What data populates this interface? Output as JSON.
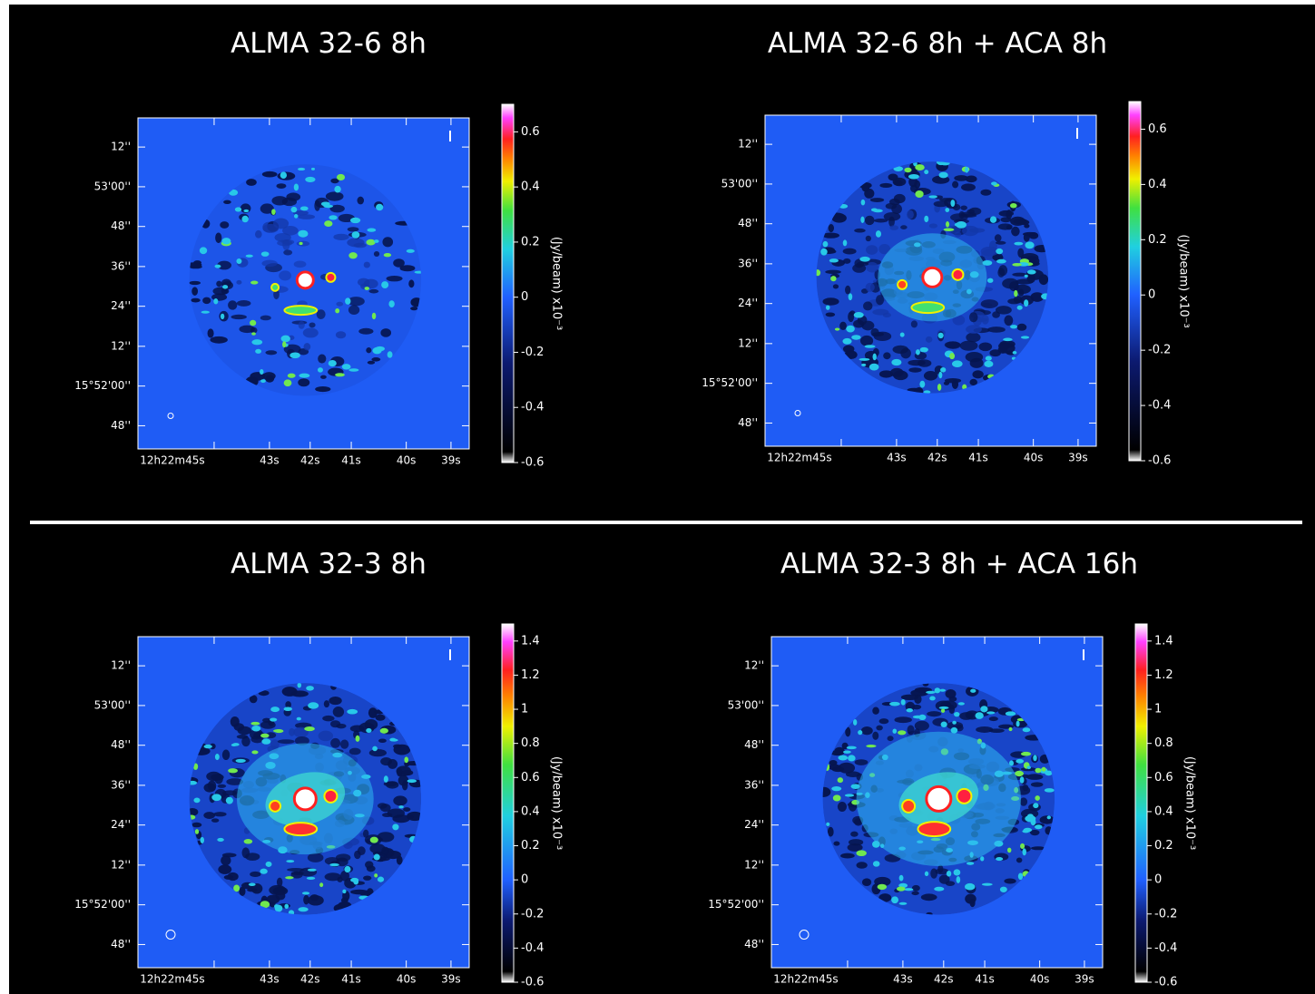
{
  "panels": [
    {
      "title": "ALMA 32-6 8h",
      "y_labels": [
        "12''",
        "53'00''",
        "48''",
        "36''",
        "24''",
        "12''",
        "15°52'00''",
        "48''"
      ],
      "x_labels": [
        "12h22m45s",
        "43s",
        "42s",
        "41s",
        "40s",
        "39s"
      ],
      "colorbar": {
        "label": "(Jy/beam)  x10⁻³",
        "lim": [
          -0.6,
          0.7
        ],
        "ticks": [
          -0.6,
          -0.4,
          -0.2,
          0,
          0.2,
          0.4,
          0.6
        ]
      }
    },
    {
      "title": "ALMA 32-6 8h + ACA 8h",
      "y_labels": [
        "12''",
        "53'00''",
        "48''",
        "36''",
        "24''",
        "12''",
        "15°52'00''",
        "48''"
      ],
      "x_labels": [
        "12h22m45s",
        "43s",
        "42s",
        "41s",
        "40s",
        "39s"
      ],
      "colorbar": {
        "label": "(Jy/beam)  x10⁻³",
        "lim": [
          -0.6,
          0.7
        ],
        "ticks": [
          -0.6,
          -0.4,
          -0.2,
          0,
          0.2,
          0.4,
          0.6
        ]
      }
    },
    {
      "title": "ALMA 32-3 8h",
      "y_labels": [
        "12''",
        "53'00''",
        "48''",
        "36''",
        "24''",
        "12''",
        "15°52'00''",
        "48''"
      ],
      "x_labels": [
        "12h22m45s",
        "43s",
        "42s",
        "41s",
        "40s",
        "39s"
      ],
      "colorbar": {
        "label": "(Jy/beam)  x10⁻³",
        "lim": [
          -0.6,
          1.5
        ],
        "ticks": [
          -0.6,
          -0.4,
          -0.2,
          0,
          0.2,
          0.4,
          0.6,
          0.8,
          1,
          1.2,
          1.4
        ]
      }
    },
    {
      "title": "ALMA 32-3 8h + ACA 16h",
      "y_labels": [
        "12''",
        "53'00''",
        "48''",
        "36''",
        "24''",
        "12''",
        "15°52'00''",
        "48''"
      ],
      "x_labels": [
        "12h22m45s",
        "43s",
        "42s",
        "41s",
        "40s",
        "39s"
      ],
      "colorbar": {
        "label": "(Jy/beam)  x10⁻³",
        "lim": [
          -0.6,
          1.5
        ],
        "ticks": [
          -0.6,
          -0.4,
          -0.2,
          0,
          0.2,
          0.4,
          0.6,
          0.8,
          1,
          1.2,
          1.4
        ]
      }
    }
  ]
}
